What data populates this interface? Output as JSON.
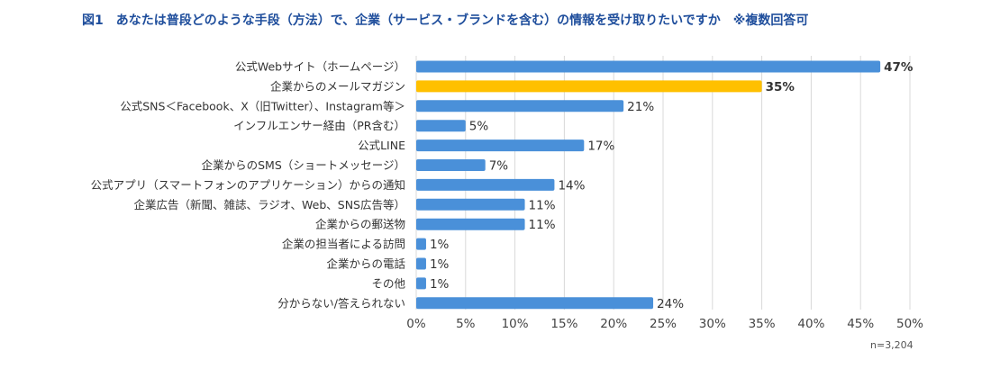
{
  "title": "図1　あなたは普段どのような手段（方法）で、企業（サービス・ブランドを含む）の情報を受け取りたいですか　※複数回答可",
  "note": "n=3,204",
  "colors": {
    "bar": "#4a90d9",
    "highlight": "#ffc000",
    "grid": "#d9d9d9"
  },
  "chart_data": {
    "type": "bar",
    "orientation": "horizontal",
    "categories": [
      "公式Webサイト（ホームページ）",
      "企業からのメールマガジン",
      "公式SNS＜Facebook、X（旧Twitter）、Instagram等＞",
      "インフルエンサー経由（PR含む）",
      "公式LINE",
      "企業からのSMS（ショートメッセージ）",
      "公式アプリ（スマートフォンのアプリケーション）からの通知",
      "企業広告（新聞、雑誌、ラジオ、Web、SNS広告等）",
      "企業からの郵送物",
      "企業の担当者による訪問",
      "企業からの電話",
      "その他",
      "分からない/答えられない"
    ],
    "values": [
      47,
      35,
      21,
      5,
      17,
      7,
      14,
      11,
      11,
      1,
      1,
      1,
      24
    ],
    "value_labels": [
      "47%",
      "35%",
      "21%",
      "5%",
      "17%",
      "7%",
      "14%",
      "11%",
      "11%",
      "1%",
      "1%",
      "1%",
      "24%"
    ],
    "bold_labels": [
      true,
      true,
      false,
      false,
      false,
      false,
      false,
      false,
      false,
      false,
      false,
      false,
      false
    ],
    "highlight_index": 1,
    "x_ticks": [
      "0%",
      "5%",
      "10%",
      "15%",
      "20%",
      "25%",
      "30%",
      "35%",
      "40%",
      "45%",
      "50%"
    ],
    "xlim": [
      0,
      50
    ],
    "grid": true
  }
}
